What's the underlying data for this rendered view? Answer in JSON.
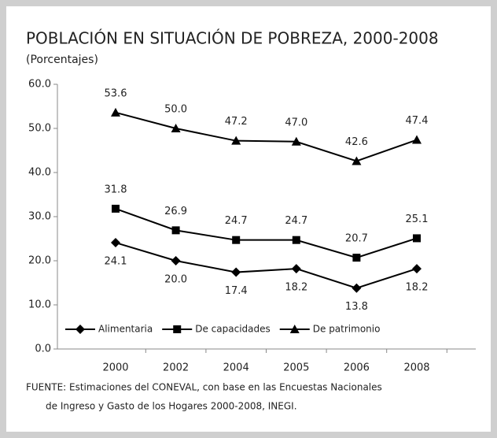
{
  "chart_data": {
    "type": "line",
    "title": "POBLACIÓN EN SITUACIÓN DE POBREZA, 2000-2008",
    "subtitle": "(Porcentajes)",
    "categories": [
      "2000",
      "2002",
      "2004",
      "2005",
      "2006",
      "2008"
    ],
    "series": [
      {
        "name": "Alimentaria",
        "color": "#000000",
        "marker": "diamond",
        "label_position": "below",
        "values": [
          24.1,
          20.0,
          17.4,
          18.2,
          13.8,
          18.2
        ],
        "value_labels": [
          "24.1",
          "20.0",
          "17.4",
          "18.2",
          "13.8",
          "18.2"
        ]
      },
      {
        "name": "De capacidades",
        "color": "#000000",
        "marker": "square",
        "label_position": "above",
        "values": [
          31.8,
          26.9,
          24.7,
          24.7,
          20.7,
          25.1
        ],
        "value_labels": [
          "31.8",
          "26.9",
          "24.7",
          "24.7",
          "20.7",
          "25.1"
        ]
      },
      {
        "name": "De patrimonio",
        "color": "#000000",
        "marker": "triangle",
        "label_position": "above",
        "values": [
          53.6,
          50.0,
          47.2,
          47.0,
          42.6,
          47.4
        ],
        "value_labels": [
          "53.6",
          "50.0",
          "47.2",
          "47.0",
          "42.6",
          "47.4"
        ]
      }
    ],
    "ylim": [
      0,
      60
    ],
    "yticks": [
      {
        "value": 0,
        "label": "0.0"
      },
      {
        "value": 10,
        "label": "10.0"
      },
      {
        "value": 20,
        "label": "20.0"
      },
      {
        "value": 30,
        "label": "30.0"
      },
      {
        "value": 40,
        "label": "40.0"
      },
      {
        "value": 50,
        "label": "50.0"
      },
      {
        "value": 60,
        "label": "60.0"
      }
    ],
    "legend": "lower-left",
    "source": [
      "FUENTE: Estimaciones del CONEVAL, con base en las Encuestas Nacionales",
      "de Ingreso y Gasto de los Hogares 2000-2008, INEGI."
    ]
  }
}
